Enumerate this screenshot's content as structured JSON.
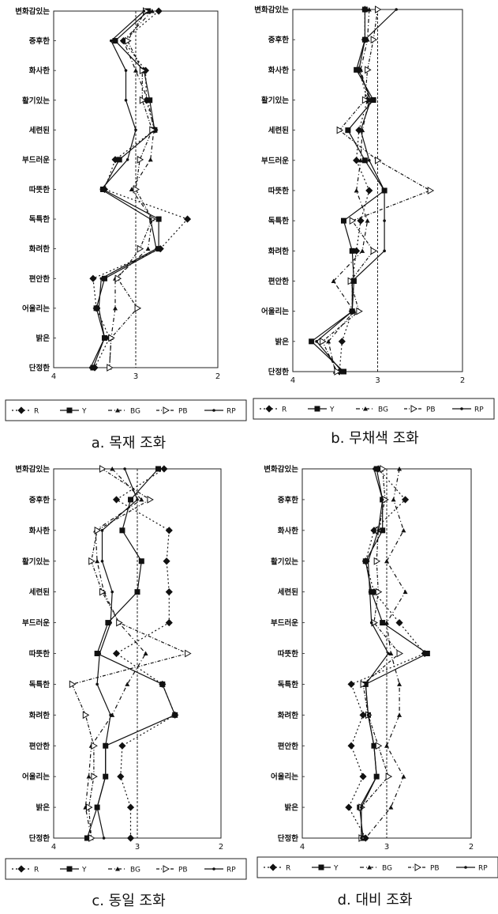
{
  "figure": {
    "panels_layout": "2x2"
  },
  "chart_data": [
    {
      "type": "line",
      "orientation": "horizontal-profile",
      "caption": "a. 목재 조화",
      "categories": [
        "변화감있는",
        "중후한",
        "화사한",
        "활기있는",
        "세련된",
        "부드러운",
        "따뜻한",
        "독특한",
        "화려한",
        "편안한",
        "어울리는",
        "밝은",
        "단정한"
      ],
      "x_axis": {
        "range": [
          4,
          2
        ],
        "ticks": [
          "4",
          "3",
          "2"
        ],
        "reference_line": 3
      },
      "grid": false,
      "legend_position": "bottom",
      "series": [
        {
          "name": "R",
          "marker": "diamond",
          "line": "dotted",
          "values": [
            2.72,
            3.15,
            2.88,
            2.87,
            2.77,
            3.25,
            3.38,
            2.37,
            2.7,
            3.52,
            3.48,
            3.32,
            3.5
          ]
        },
        {
          "name": "Y",
          "marker": "square",
          "line": "solid",
          "values": [
            2.85,
            3.25,
            2.9,
            2.83,
            2.77,
            3.2,
            3.4,
            2.72,
            2.72,
            3.38,
            3.48,
            3.38,
            3.52
          ]
        },
        {
          "name": "BG",
          "marker": "triangle",
          "line": "dashdot",
          "values": [
            2.8,
            3.15,
            3.0,
            2.85,
            2.78,
            2.82,
            3.05,
            2.8,
            2.85,
            3.25,
            3.25,
            3.3,
            3.32
          ]
        },
        {
          "name": "PB",
          "marker": "open-triangle",
          "line": "dashdot",
          "values": [
            2.88,
            3.1,
            2.92,
            2.92,
            2.8,
            2.95,
            3.0,
            2.8,
            2.95,
            3.22,
            2.98,
            3.3,
            3.32
          ]
        },
        {
          "name": "RP",
          "marker": "dot",
          "line": "solid",
          "values": [
            2.9,
            3.3,
            3.12,
            3.12,
            3.0,
            3.1,
            3.42,
            2.82,
            2.75,
            3.42,
            3.45,
            3.38,
            3.55
          ]
        }
      ]
    },
    {
      "type": "line",
      "orientation": "horizontal-profile",
      "caption": "b. 무채색 조화",
      "categories": [
        "변화감있는",
        "중후한",
        "화사한",
        "활기있는",
        "세련된",
        "부드러운",
        "따뜻한",
        "독특한",
        "화려한",
        "편안한",
        "어울리는",
        "밝은",
        "단정한"
      ],
      "x_axis": {
        "range": [
          4,
          2
        ],
        "ticks": [
          "4",
          "3",
          "2"
        ],
        "reference_line": 3
      },
      "grid": false,
      "legend_position": "bottom",
      "series": [
        {
          "name": "R",
          "marker": "diamond",
          "line": "dotted",
          "values": [
            3.15,
            3.15,
            3.22,
            3.12,
            3.22,
            3.25,
            3.1,
            3.2,
            3.25,
            3.3,
            3.3,
            3.42,
            3.45
          ]
        },
        {
          "name": "Y",
          "marker": "square",
          "line": "solid",
          "values": [
            3.15,
            3.15,
            3.25,
            3.05,
            3.35,
            3.15,
            2.92,
            3.4,
            3.3,
            3.28,
            3.3,
            3.78,
            3.4
          ]
        },
        {
          "name": "BG",
          "marker": "triangle",
          "line": "dashdot",
          "values": [
            3.1,
            3.12,
            3.2,
            3.1,
            3.18,
            3.2,
            3.25,
            3.12,
            3.18,
            3.52,
            3.28,
            3.58,
            3.5
          ]
        },
        {
          "name": "PB",
          "marker": "open-triangle",
          "line": "dashdot",
          "values": [
            3.0,
            3.05,
            3.12,
            3.15,
            3.45,
            3.0,
            2.38,
            3.3,
            3.05,
            3.32,
            3.22,
            3.65,
            3.48
          ]
        },
        {
          "name": "RP",
          "marker": "dot",
          "line": "solid",
          "values": [
            2.78,
            3.15,
            3.22,
            3.08,
            3.2,
            3.1,
            2.92,
            2.92,
            2.92,
            3.3,
            3.3,
            3.72,
            3.42
          ]
        }
      ]
    },
    {
      "type": "line",
      "orientation": "horizontal-profile",
      "caption": "c. 동일 조화",
      "categories": [
        "변화감있는",
        "중후한",
        "화사한",
        "활기있는",
        "세련된",
        "부드러운",
        "따뜻한",
        "독특한",
        "화려한",
        "편안한",
        "어울리는",
        "밝은",
        "단정한"
      ],
      "x_axis": {
        "range": [
          4,
          2
        ],
        "ticks": [
          "4",
          "3",
          "2"
        ],
        "reference_line": 3
      },
      "grid": false,
      "legend_position": "bottom",
      "series": [
        {
          "name": "R",
          "marker": "diamond",
          "line": "dotted",
          "values": [
            2.68,
            3.25,
            2.62,
            2.65,
            2.62,
            2.62,
            3.25,
            2.7,
            2.55,
            3.18,
            3.2,
            3.08,
            3.08
          ]
        },
        {
          "name": "Y",
          "marker": "square",
          "line": "solid",
          "values": [
            2.75,
            3.08,
            3.18,
            2.95,
            3.0,
            3.35,
            3.48,
            2.7,
            2.55,
            3.38,
            3.38,
            3.48,
            3.6
          ]
        },
        {
          "name": "BG",
          "marker": "triangle",
          "line": "dashdot",
          "values": [
            3.3,
            2.95,
            3.5,
            3.48,
            3.4,
            3.22,
            2.9,
            3.12,
            3.3,
            3.55,
            3.58,
            3.62,
            3.55
          ]
        },
        {
          "name": "PB",
          "marker": "open-triangle",
          "line": "dashdot",
          "values": [
            3.42,
            2.85,
            3.48,
            3.55,
            3.42,
            3.22,
            2.4,
            3.78,
            3.62,
            3.52,
            3.52,
            3.58,
            3.55
          ]
        },
        {
          "name": "RP",
          "marker": "dot",
          "line": "solid",
          "values": [
            3.15,
            3.0,
            3.42,
            3.42,
            3.3,
            3.32,
            3.45,
            3.48,
            3.32,
            3.38,
            3.38,
            3.48,
            3.4
          ]
        }
      ]
    },
    {
      "type": "line",
      "orientation": "horizontal-profile",
      "caption": "d. 대비 조화",
      "categories": [
        "변화감있는",
        "중후한",
        "화사한",
        "활기있는",
        "세련된",
        "부드러운",
        "따뜻한",
        "독특한",
        "화려한",
        "편안한",
        "어울리는",
        "밝은",
        "단정한"
      ],
      "x_axis": {
        "range": [
          4,
          2
        ],
        "ticks": [
          "4",
          "3",
          "2"
        ],
        "reference_line": 3
      },
      "grid": false,
      "legend_position": "bottom",
      "series": [
        {
          "name": "R",
          "marker": "diamond",
          "line": "dotted",
          "values": [
            3.1,
            2.78,
            3.15,
            3.25,
            3.15,
            2.85,
            2.55,
            3.42,
            3.28,
            3.42,
            3.28,
            3.45,
            3.25
          ]
        },
        {
          "name": "Y",
          "marker": "square",
          "line": "solid",
          "values": [
            3.12,
            3.05,
            3.05,
            3.25,
            3.18,
            3.05,
            2.52,
            3.25,
            3.22,
            3.15,
            3.12,
            3.32,
            3.28
          ]
        },
        {
          "name": "BG",
          "marker": "triangle",
          "line": "dashdot",
          "values": [
            2.85,
            2.92,
            2.8,
            3.0,
            2.78,
            3.0,
            2.95,
            2.85,
            2.85,
            3.0,
            2.8,
            2.95,
            3.25
          ]
        },
        {
          "name": "PB",
          "marker": "open-triangle",
          "line": "dashdot",
          "values": [
            3.05,
            3.02,
            3.1,
            3.12,
            3.1,
            3.15,
            2.85,
            3.28,
            3.22,
            3.1,
            2.98,
            3.3,
            3.3
          ]
        },
        {
          "name": "RP",
          "marker": "dot",
          "line": "solid",
          "values": [
            3.15,
            3.05,
            3.1,
            3.22,
            3.2,
            3.18,
            2.98,
            3.25,
            3.22,
            3.15,
            3.12,
            3.3,
            3.3
          ]
        }
      ]
    }
  ]
}
